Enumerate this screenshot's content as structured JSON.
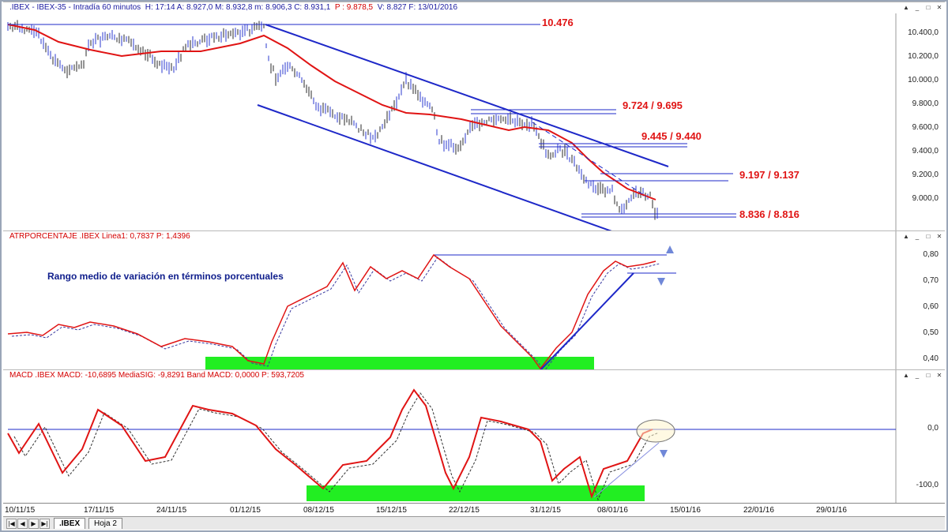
{
  "price_panel": {
    "title_symbol": ".IBEX - IBEX-35 - Intradía 60 minutos",
    "title_values": "H: 17:14  A: 8.927,0  M: 8.932,8  m: 8.906,3  C: 8.931,1",
    "title_p": "P : 9.878,5",
    "title_rest": "V: 8.827  F: 13/01/2016",
    "y_labels": [
      "10.400,0",
      "10.200,0",
      "10.000,0",
      "9.800,0",
      "9.600,0",
      "9.400,0",
      "9.200,0",
      "9.000,0"
    ],
    "levels": [
      "10.476",
      "9.724 / 9.695",
      "9.445 / 9.440",
      "9.197 / 9.137",
      "8.836 / 8.816"
    ]
  },
  "atr_panel": {
    "title": "ATRPORCENTAJE .IBEX Linea1: 0,7837 P: 1,4396",
    "annotation": "Rango medio de variación en términos porcentuales",
    "y_labels": [
      "0,80",
      "0,70",
      "0,60",
      "0,50",
      "0,40"
    ]
  },
  "macd_panel": {
    "title": "MACD .IBEX MACD: -10,6895 MediaSIG: -9,8291 Band MACD: 0,0000 P: 593,7205",
    "y_labels": [
      "0,0",
      "-100,0"
    ]
  },
  "x_axis": [
    "10/11/15",
    "17/11/15",
    "24/11/15",
    "01/12/15",
    "08/12/15",
    "15/12/15",
    "22/12/15",
    "31/12/15",
    "08/01/16",
    "15/01/16",
    "22/01/16",
    "29/01/16"
  ],
  "tabs": [
    ".IBEX",
    "Hoja 2"
  ],
  "nav_icons": [
    "first-icon",
    "prev-icon",
    "next-icon",
    "last-icon"
  ],
  "colors": {
    "price_line": "#e01414",
    "trend_lines": "#1e28c8",
    "highlight": "#22ee22",
    "level_text": "#e01414"
  }
}
